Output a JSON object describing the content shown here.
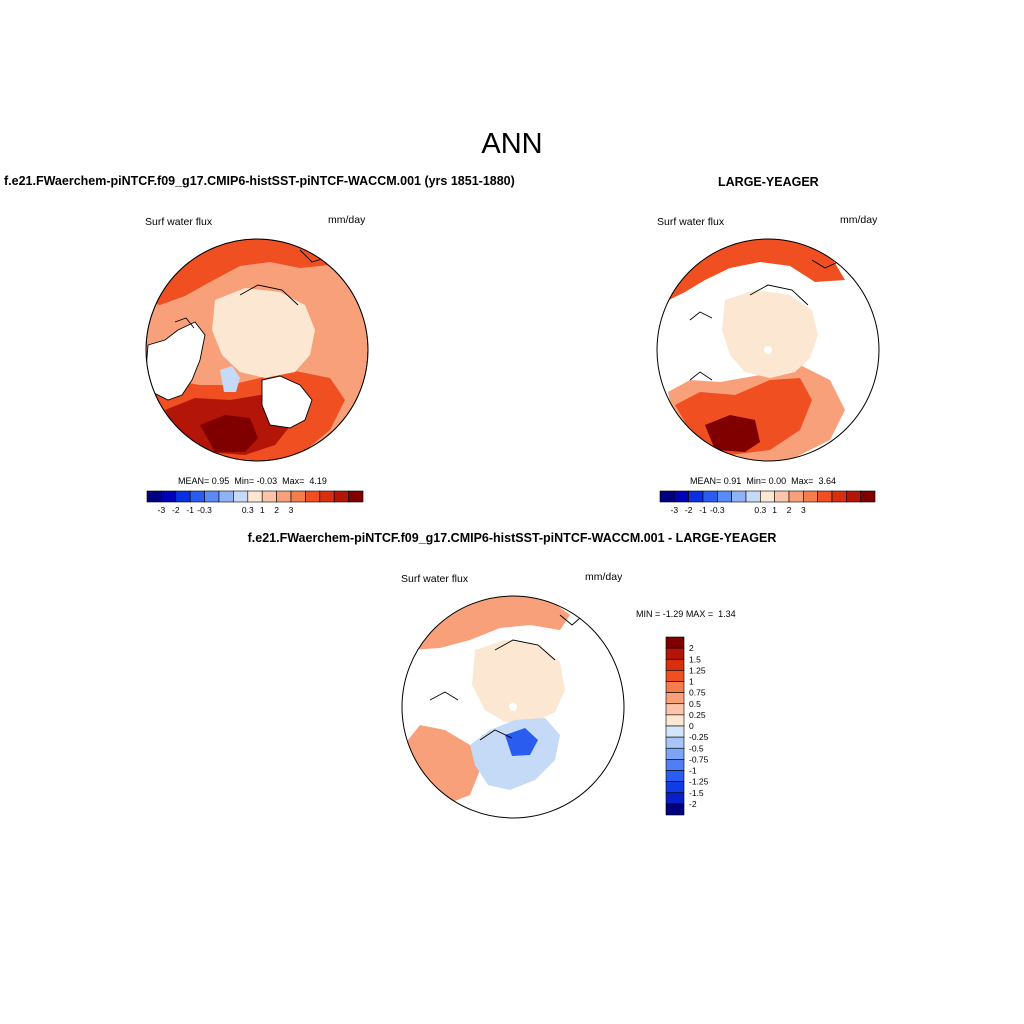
{
  "figure_title": "ANN",
  "panels": [
    {
      "title": "f.e21.FWaerchem-piNTCF.f09_g17.CMIP6-histSST-piNTCF-WACCM.001 (yrs 1851-1880)",
      "variable": "Surf water flux",
      "units": "mm/day",
      "stats": {
        "mean_label": "MEAN=",
        "mean": "0.95",
        "min_label": "Min=",
        "min": "-0.03",
        "max_label": "Max=",
        "max": "4.19"
      }
    },
    {
      "title": "LARGE-YEAGER",
      "variable": "Surf water flux",
      "units": "mm/day",
      "stats": {
        "mean_label": "MEAN=",
        "mean": "0.91",
        "min_label": "Min=",
        "min": "0.00",
        "max_label": "Max=",
        "max": "3.64"
      }
    }
  ],
  "diff_panel": {
    "title": "f.e21.FWaerchem-piNTCF.f09_g17.CMIP6-histSST-piNTCF-WACCM.001 - LARGE-YEAGER",
    "variable": "Surf water flux",
    "units": "mm/day",
    "minmax": {
      "min_label": "MIN =",
      "min": "-1.29",
      "max_label": "MAX =",
      "max": "1.34"
    }
  },
  "colorbar_main": {
    "colors": [
      "#00007f",
      "#0000b8",
      "#0a2fe0",
      "#2b5cf0",
      "#5a8af5",
      "#8fb3f7",
      "#c4daf7",
      "#fbe7d2",
      "#fcc4a9",
      "#f8a07a",
      "#f47c4d",
      "#ef4f21",
      "#d8300f",
      "#b31508",
      "#800000"
    ],
    "tick_labels": [
      "-3",
      "-2",
      "-1",
      "-0.3",
      "0.3",
      "1",
      "2",
      "3"
    ]
  },
  "colorbar_diff": {
    "colors": [
      "#00007f",
      "#0a1fc8",
      "#0f3ce6",
      "#2a5cf2",
      "#4f7ef5",
      "#7ea4f6",
      "#a9c4f7",
      "#d3e5f8",
      "#fbe7d2",
      "#fcc4a9",
      "#f8a07a",
      "#f47c4d",
      "#ef4f21",
      "#d8300f",
      "#b31508",
      "#800000"
    ],
    "tick_labels": [
      "2",
      "1.5",
      "1.25",
      "1",
      "0.75",
      "0.5",
      "0.25",
      "0",
      "-0.25",
      "-0.5",
      "-0.75",
      "-1",
      "-1.25",
      "-1.5",
      "-2"
    ]
  },
  "map_colors": {
    "ocean_low": "#fbe7d2",
    "ocean_mid": "#f8a07a",
    "ocean_high": "#ef4f21",
    "ocean_max": "#b31508",
    "ocean_peak": "#800000",
    "negative": "#c4daf7",
    "negative_strong": "#2b5cf0",
    "land": "#ffffff"
  }
}
